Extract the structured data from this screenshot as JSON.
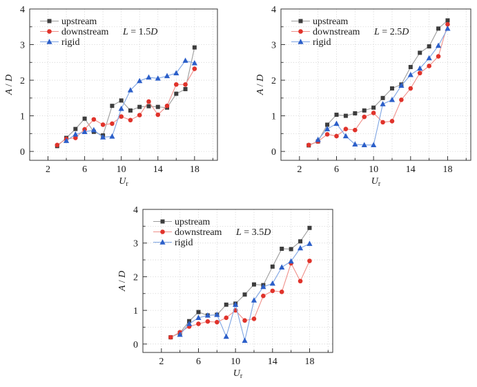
{
  "figure": {
    "background": "#ffffff"
  },
  "chart_data": [
    {
      "type": "line",
      "title": "",
      "annotation_parts": [
        {
          "text": "L",
          "italic": true
        },
        {
          "text": " = 1.5",
          "italic": false
        },
        {
          "text": "D",
          "italic": true
        }
      ],
      "xlabel": {
        "base": "U",
        "sub": "r"
      },
      "ylabel_parts": [
        {
          "text": "A",
          "italic": true
        },
        {
          "text": " / ",
          "italic": false
        },
        {
          "text": "D",
          "italic": true
        }
      ],
      "xlim": [
        0,
        20.5
      ],
      "ylim": [
        -0.25,
        4
      ],
      "x_major_ticks": [
        2,
        6,
        10,
        14,
        18
      ],
      "x_minor_ticks": [
        4,
        8,
        12,
        16,
        20
      ],
      "y_major_ticks": [
        0,
        1,
        2,
        3,
        4
      ],
      "y_minor_ticks": [
        0.5,
        1.5,
        2.5,
        3.5
      ],
      "grid": true,
      "grid_color": "#c9c9c9",
      "axis_color": "#333333",
      "legend_position": "top-left",
      "series": [
        {
          "name": "upstream",
          "marker": "square",
          "color": "#3d3d3d",
          "line_color": "#9c9c9c",
          "x": [
            3,
            4,
            5,
            6,
            7,
            8,
            9,
            10,
            11,
            12,
            13,
            14,
            15,
            16,
            17,
            18
          ],
          "y": [
            0.15,
            0.38,
            0.63,
            0.92,
            0.55,
            0.45,
            1.28,
            1.43,
            1.15,
            1.25,
            1.27,
            1.25,
            1.23,
            1.62,
            1.75,
            2.92
          ]
        },
        {
          "name": "downstream",
          "marker": "circle",
          "color": "#e0332b",
          "line_color": "#ef8f89",
          "x": [
            3,
            4,
            5,
            6,
            7,
            8,
            9,
            10,
            11,
            12,
            13,
            14,
            15,
            16,
            17,
            18
          ],
          "y": [
            0.18,
            0.35,
            0.38,
            0.62,
            0.9,
            0.75,
            0.78,
            0.98,
            0.88,
            1.02,
            1.4,
            1.03,
            1.28,
            1.88,
            1.88,
            2.32
          ]
        },
        {
          "name": "rigid",
          "marker": "triangle",
          "color": "#2c5fc9",
          "line_color": "#7da4e3",
          "x": [
            4,
            5,
            6,
            7,
            8,
            9,
            10,
            11,
            12,
            13,
            14,
            15,
            16,
            17,
            18
          ],
          "y": [
            0.3,
            0.48,
            0.55,
            0.6,
            0.4,
            0.42,
            1.2,
            1.72,
            1.98,
            2.08,
            2.05,
            2.12,
            2.2,
            2.55,
            2.48
          ]
        }
      ]
    },
    {
      "type": "line",
      "title": "",
      "annotation_parts": [
        {
          "text": "L",
          "italic": true
        },
        {
          "text": " = 2.5",
          "italic": false
        },
        {
          "text": "D",
          "italic": true
        }
      ],
      "xlabel": {
        "base": "U",
        "sub": "r"
      },
      "ylabel_parts": [
        {
          "text": "A",
          "italic": true
        },
        {
          "text": " / ",
          "italic": false
        },
        {
          "text": "D",
          "italic": true
        }
      ],
      "xlim": [
        0,
        20.5
      ],
      "ylim": [
        -0.25,
        4
      ],
      "x_major_ticks": [
        2,
        6,
        10,
        14,
        18
      ],
      "x_minor_ticks": [
        4,
        8,
        12,
        16,
        20
      ],
      "y_major_ticks": [
        0,
        1,
        2,
        3,
        4
      ],
      "y_minor_ticks": [
        0.5,
        1.5,
        2.5,
        3.5
      ],
      "grid": true,
      "grid_color": "#c9c9c9",
      "axis_color": "#333333",
      "legend_position": "top-left",
      "series": [
        {
          "name": "upstream",
          "marker": "square",
          "color": "#3d3d3d",
          "line_color": "#9c9c9c",
          "x": [
            3,
            4,
            5,
            6,
            7,
            8,
            9,
            10,
            11,
            12,
            13,
            14,
            15,
            16,
            17,
            18
          ],
          "y": [
            0.17,
            0.28,
            0.75,
            1.03,
            1.0,
            1.07,
            1.15,
            1.23,
            1.5,
            1.77,
            1.88,
            2.37,
            2.77,
            2.95,
            3.45,
            3.68
          ]
        },
        {
          "name": "downstream",
          "marker": "circle",
          "color": "#e0332b",
          "line_color": "#ef8f89",
          "x": [
            3,
            4,
            5,
            6,
            7,
            8,
            9,
            10,
            11,
            12,
            13,
            14,
            15,
            16,
            17,
            18
          ],
          "y": [
            0.18,
            0.28,
            0.48,
            0.43,
            0.63,
            0.6,
            0.97,
            1.08,
            0.82,
            0.85,
            1.45,
            1.77,
            2.2,
            2.4,
            2.67,
            3.57
          ]
        },
        {
          "name": "rigid",
          "marker": "triangle",
          "color": "#2c5fc9",
          "line_color": "#7da4e3",
          "x": [
            4,
            5,
            6,
            7,
            8,
            9,
            10,
            11,
            12,
            13,
            14,
            15,
            16,
            17,
            18
          ],
          "y": [
            0.33,
            0.63,
            0.78,
            0.43,
            0.2,
            0.18,
            0.18,
            1.33,
            1.45,
            1.85,
            2.15,
            2.33,
            2.62,
            2.97,
            3.45
          ]
        }
      ]
    },
    {
      "type": "line",
      "title": "",
      "annotation_parts": [
        {
          "text": "L",
          "italic": true
        },
        {
          "text": " = 3.5",
          "italic": false
        },
        {
          "text": "D",
          "italic": true
        }
      ],
      "xlabel": {
        "base": "U",
        "sub": "r"
      },
      "ylabel_parts": [
        {
          "text": "A",
          "italic": true
        },
        {
          "text": " / ",
          "italic": false
        },
        {
          "text": "D",
          "italic": true
        }
      ],
      "xlim": [
        0,
        20.5
      ],
      "ylim": [
        -0.25,
        4
      ],
      "x_major_ticks": [
        2,
        6,
        10,
        14,
        18
      ],
      "x_minor_ticks": [
        4,
        8,
        12,
        16,
        20
      ],
      "y_major_ticks": [
        0,
        1,
        2,
        3,
        4
      ],
      "y_minor_ticks": [
        0.5,
        1.5,
        2.5,
        3.5
      ],
      "grid": true,
      "grid_color": "#c9c9c9",
      "axis_color": "#333333",
      "legend_position": "top-left",
      "series": [
        {
          "name": "upstream",
          "marker": "square",
          "color": "#3d3d3d",
          "line_color": "#9c9c9c",
          "x": [
            3,
            4,
            5,
            6,
            7,
            8,
            9,
            10,
            11,
            12,
            13,
            14,
            15,
            16,
            17,
            18
          ],
          "y": [
            0.2,
            0.33,
            0.68,
            0.95,
            0.85,
            0.87,
            1.17,
            1.2,
            1.47,
            1.77,
            1.75,
            2.3,
            2.83,
            2.82,
            3.05,
            3.45
          ]
        },
        {
          "name": "downstream",
          "marker": "circle",
          "color": "#e0332b",
          "line_color": "#ef8f89",
          "x": [
            3,
            4,
            5,
            6,
            7,
            8,
            9,
            10,
            11,
            12,
            13,
            14,
            15,
            16,
            17,
            18
          ],
          "y": [
            0.2,
            0.35,
            0.52,
            0.6,
            0.67,
            0.65,
            0.78,
            1.0,
            0.7,
            0.75,
            1.43,
            1.58,
            1.55,
            2.4,
            1.87,
            2.47
          ]
        },
        {
          "name": "rigid",
          "marker": "triangle",
          "color": "#2c5fc9",
          "line_color": "#7da4e3",
          "x": [
            4,
            5,
            6,
            7,
            8,
            9,
            10,
            11,
            12,
            13,
            14,
            15,
            16,
            17,
            18
          ],
          "y": [
            0.28,
            0.6,
            0.78,
            0.85,
            0.87,
            0.22,
            1.17,
            0.1,
            1.3,
            1.7,
            1.8,
            2.28,
            2.46,
            2.85,
            2.98
          ]
        }
      ]
    }
  ]
}
